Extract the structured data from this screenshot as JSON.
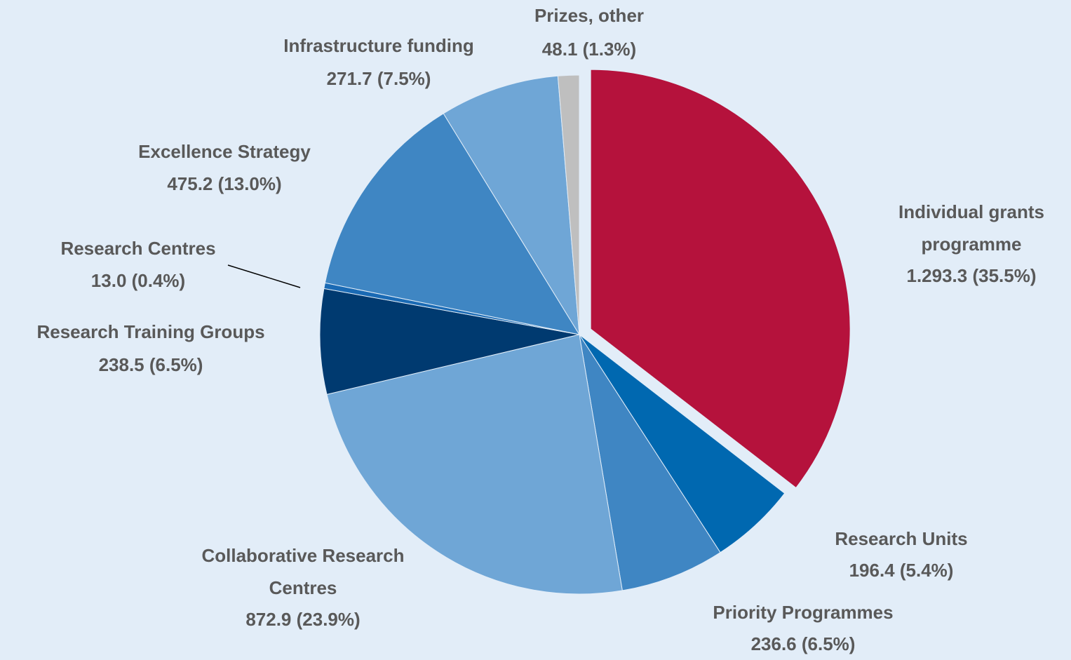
{
  "chart_data": {
    "type": "pie",
    "categories": [
      "Individual grants programme",
      "Research Units",
      "Priority Programmes",
      "Collaborative Research Centres",
      "Research Training Groups",
      "Research Centres",
      "Excellence Strategy",
      "Infrastructure funding",
      "Prizes, other"
    ],
    "values": [
      1293.3,
      196.4,
      236.6,
      872.9,
      238.5,
      13.0,
      475.2,
      271.7,
      48.1
    ],
    "value_labels": [
      "1.293.3 (35.5%)",
      "196.4 (5.4%)",
      "236.6 (6.5%)",
      "872.9 (23.9%)",
      "238.5 (6.5%)",
      "13.0 (0.4%)",
      "475.2 (13.0%)",
      "271.7 (7.5%)",
      "48.1 (1.3%)"
    ],
    "colors": [
      "#b5123c",
      "#0068b0",
      "#3f86c3",
      "#6fa6d6",
      "#003a70",
      "#1a6ab4",
      "#3f86c3",
      "#6fa6d6",
      "#bfbfbf"
    ]
  }
}
